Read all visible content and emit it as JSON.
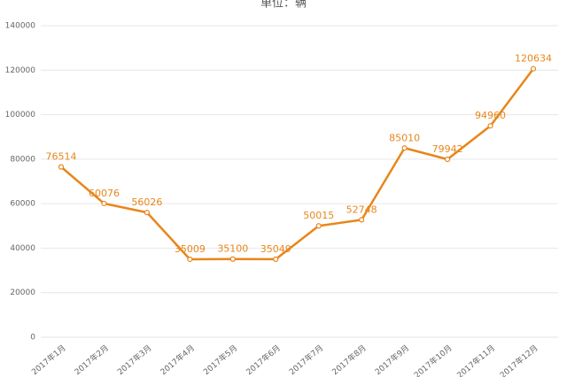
{
  "chart_data": {
    "type": "line",
    "title": "单位：辆",
    "categories": [
      "2017年1月",
      "2017年2月",
      "2017年3月",
      "2017年4月",
      "2017年5月",
      "2017年6月",
      "2017年7月",
      "2017年8月",
      "2017年9月",
      "2017年10月",
      "2017年11月",
      "2017年12月"
    ],
    "values": [
      76514,
      60076,
      56026,
      35009,
      35100,
      35049,
      50015,
      52748,
      85010,
      79942,
      94960,
      120634
    ],
    "color": "#e8861a",
    "ylim": [
      0,
      140000
    ],
    "yticks": [
      0,
      20000,
      40000,
      60000,
      80000,
      100000,
      120000,
      140000
    ],
    "grid": true
  }
}
